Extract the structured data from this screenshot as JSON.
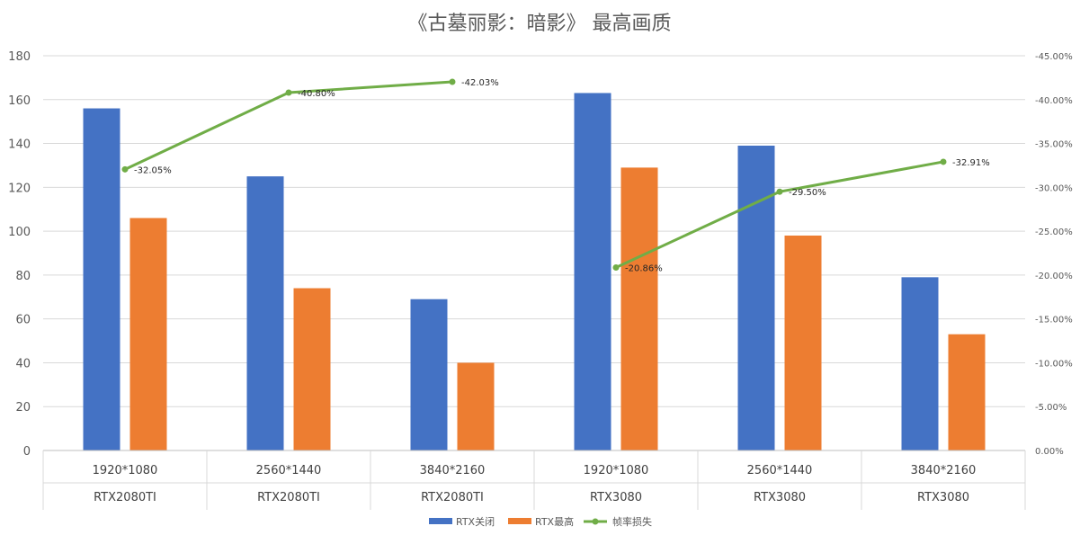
{
  "chart_data": {
    "type": "bar",
    "title": "《古墓丽影：暗影》 最高画质",
    "categories": [
      {
        "resolution": "1920*1080",
        "gpu": "RTX2080TI"
      },
      {
        "resolution": "2560*1440",
        "gpu": "RTX2080TI"
      },
      {
        "resolution": "3840*2160",
        "gpu": "RTX2080TI"
      },
      {
        "resolution": "1920*1080",
        "gpu": "RTX3080"
      },
      {
        "resolution": "2560*1440",
        "gpu": "RTX3080"
      },
      {
        "resolution": "3840*2160",
        "gpu": "RTX3080"
      }
    ],
    "series": [
      {
        "name": "RTX关闭",
        "type": "bar",
        "axis": "left",
        "color": "#4472C4",
        "values": [
          156,
          125,
          69,
          163,
          139,
          79
        ]
      },
      {
        "name": "RTX最高",
        "type": "bar",
        "axis": "left",
        "color": "#ED7D31",
        "values": [
          106,
          74,
          40,
          129,
          98,
          53
        ]
      },
      {
        "name": "帧率损失",
        "type": "line",
        "axis": "right",
        "color": "#70AD47",
        "values": [
          -32.05,
          -40.8,
          -42.03,
          -20.86,
          -29.5,
          -32.91
        ],
        "labels": [
          "-32.05%",
          "-40.80%",
          "-42.03%",
          "-20.86%",
          "-29.50%",
          "-32.91%"
        ],
        "segments": [
          [
            0,
            2
          ],
          [
            3,
            5
          ]
        ]
      }
    ],
    "y_left": {
      "min": 0,
      "max": 180,
      "ticks": [
        "0",
        "20",
        "40",
        "60",
        "80",
        "100",
        "120",
        "140",
        "160",
        "180"
      ]
    },
    "y_right": {
      "min": 0,
      "max": -45,
      "ticks": [
        "0.00%",
        "-5.00%",
        "-10.00%",
        "-15.00%",
        "-20.00%",
        "-25.00%",
        "-30.00%",
        "-35.00%",
        "-40.00%",
        "-45.00%"
      ]
    },
    "grid": true,
    "legend": "bottom-center"
  }
}
